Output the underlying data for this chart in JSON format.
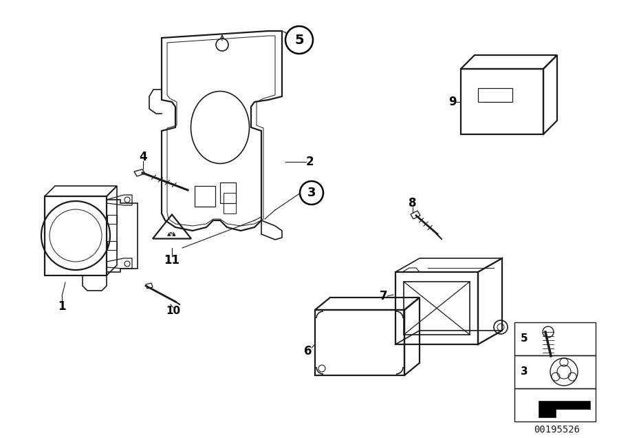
{
  "bg_color": "#ffffff",
  "line_color": "#1a1a1a",
  "reference_number": "00195526",
  "fig_width": 9.0,
  "fig_height": 6.36,
  "dpi": 100
}
